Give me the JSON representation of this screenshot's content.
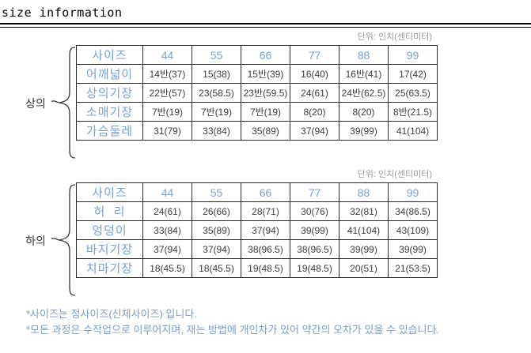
{
  "title": "size information",
  "unit_label": "단위: 인치(센티미터)",
  "colors": {
    "header_text": "#76a2d8",
    "data_text": "#3d3d3d",
    "unit_text": "#9a9a9a",
    "note_text": "#7e9cc8",
    "border": "#2a2a2a"
  },
  "tables": [
    {
      "group_label": "상의",
      "header": [
        "사이즈",
        "44",
        "55",
        "66",
        "77",
        "88",
        "99"
      ],
      "rows": [
        {
          "label": "어깨넓이",
          "values": [
            "14반(37)",
            "15(38)",
            "15반(39)",
            "16(40)",
            "16반(41)",
            "17(42)"
          ]
        },
        {
          "label": "상의기장",
          "values": [
            "22반(57)",
            "23(58.5)",
            "23반(59.5)",
            "24(61)",
            "24반(62.5)",
            "25(63.5)"
          ]
        },
        {
          "label": "소매기장",
          "values": [
            "7반(19)",
            "7반(19)",
            "7반(19)",
            "8(20)",
            "8(20)",
            "8반(21.5)"
          ]
        },
        {
          "label": "가슴둘레",
          "values": [
            "31(79)",
            "33(84)",
            "35(89)",
            "37(94)",
            "39(99)",
            "41(104)"
          ]
        }
      ]
    },
    {
      "group_label": "하의",
      "header": [
        "사이즈",
        "44",
        "55",
        "66",
        "77",
        "88",
        "99"
      ],
      "rows": [
        {
          "label": "허  리",
          "values": [
            "24(61)",
            "26(66)",
            "28(71)",
            "30(76)",
            "32(81)",
            "34(86.5)"
          ]
        },
        {
          "label": "엉덩이",
          "values": [
            "33(84)",
            "35(89)",
            "37(94)",
            "39(99)",
            "41(104)",
            "43(109)"
          ]
        },
        {
          "label": "바지기장",
          "values": [
            "37(94)",
            "37(94)",
            "38(96.5)",
            "38(96.5)",
            "39(99)",
            "39(99)"
          ]
        },
        {
          "label": "치마기장",
          "values": [
            "18(45.5)",
            "18(45.5)",
            "19(48.5)",
            "19(48.5)",
            "20(51)",
            "21(53.5)"
          ]
        }
      ]
    }
  ],
  "notes": [
    "*사이즈는 정사이즈(신체사이즈) 입니다.",
    "*모든 과정은 수작업으로 이루어지며, 재는 방법에 개인차가 있어 약간의 오차가 있을 수 있습니다."
  ]
}
